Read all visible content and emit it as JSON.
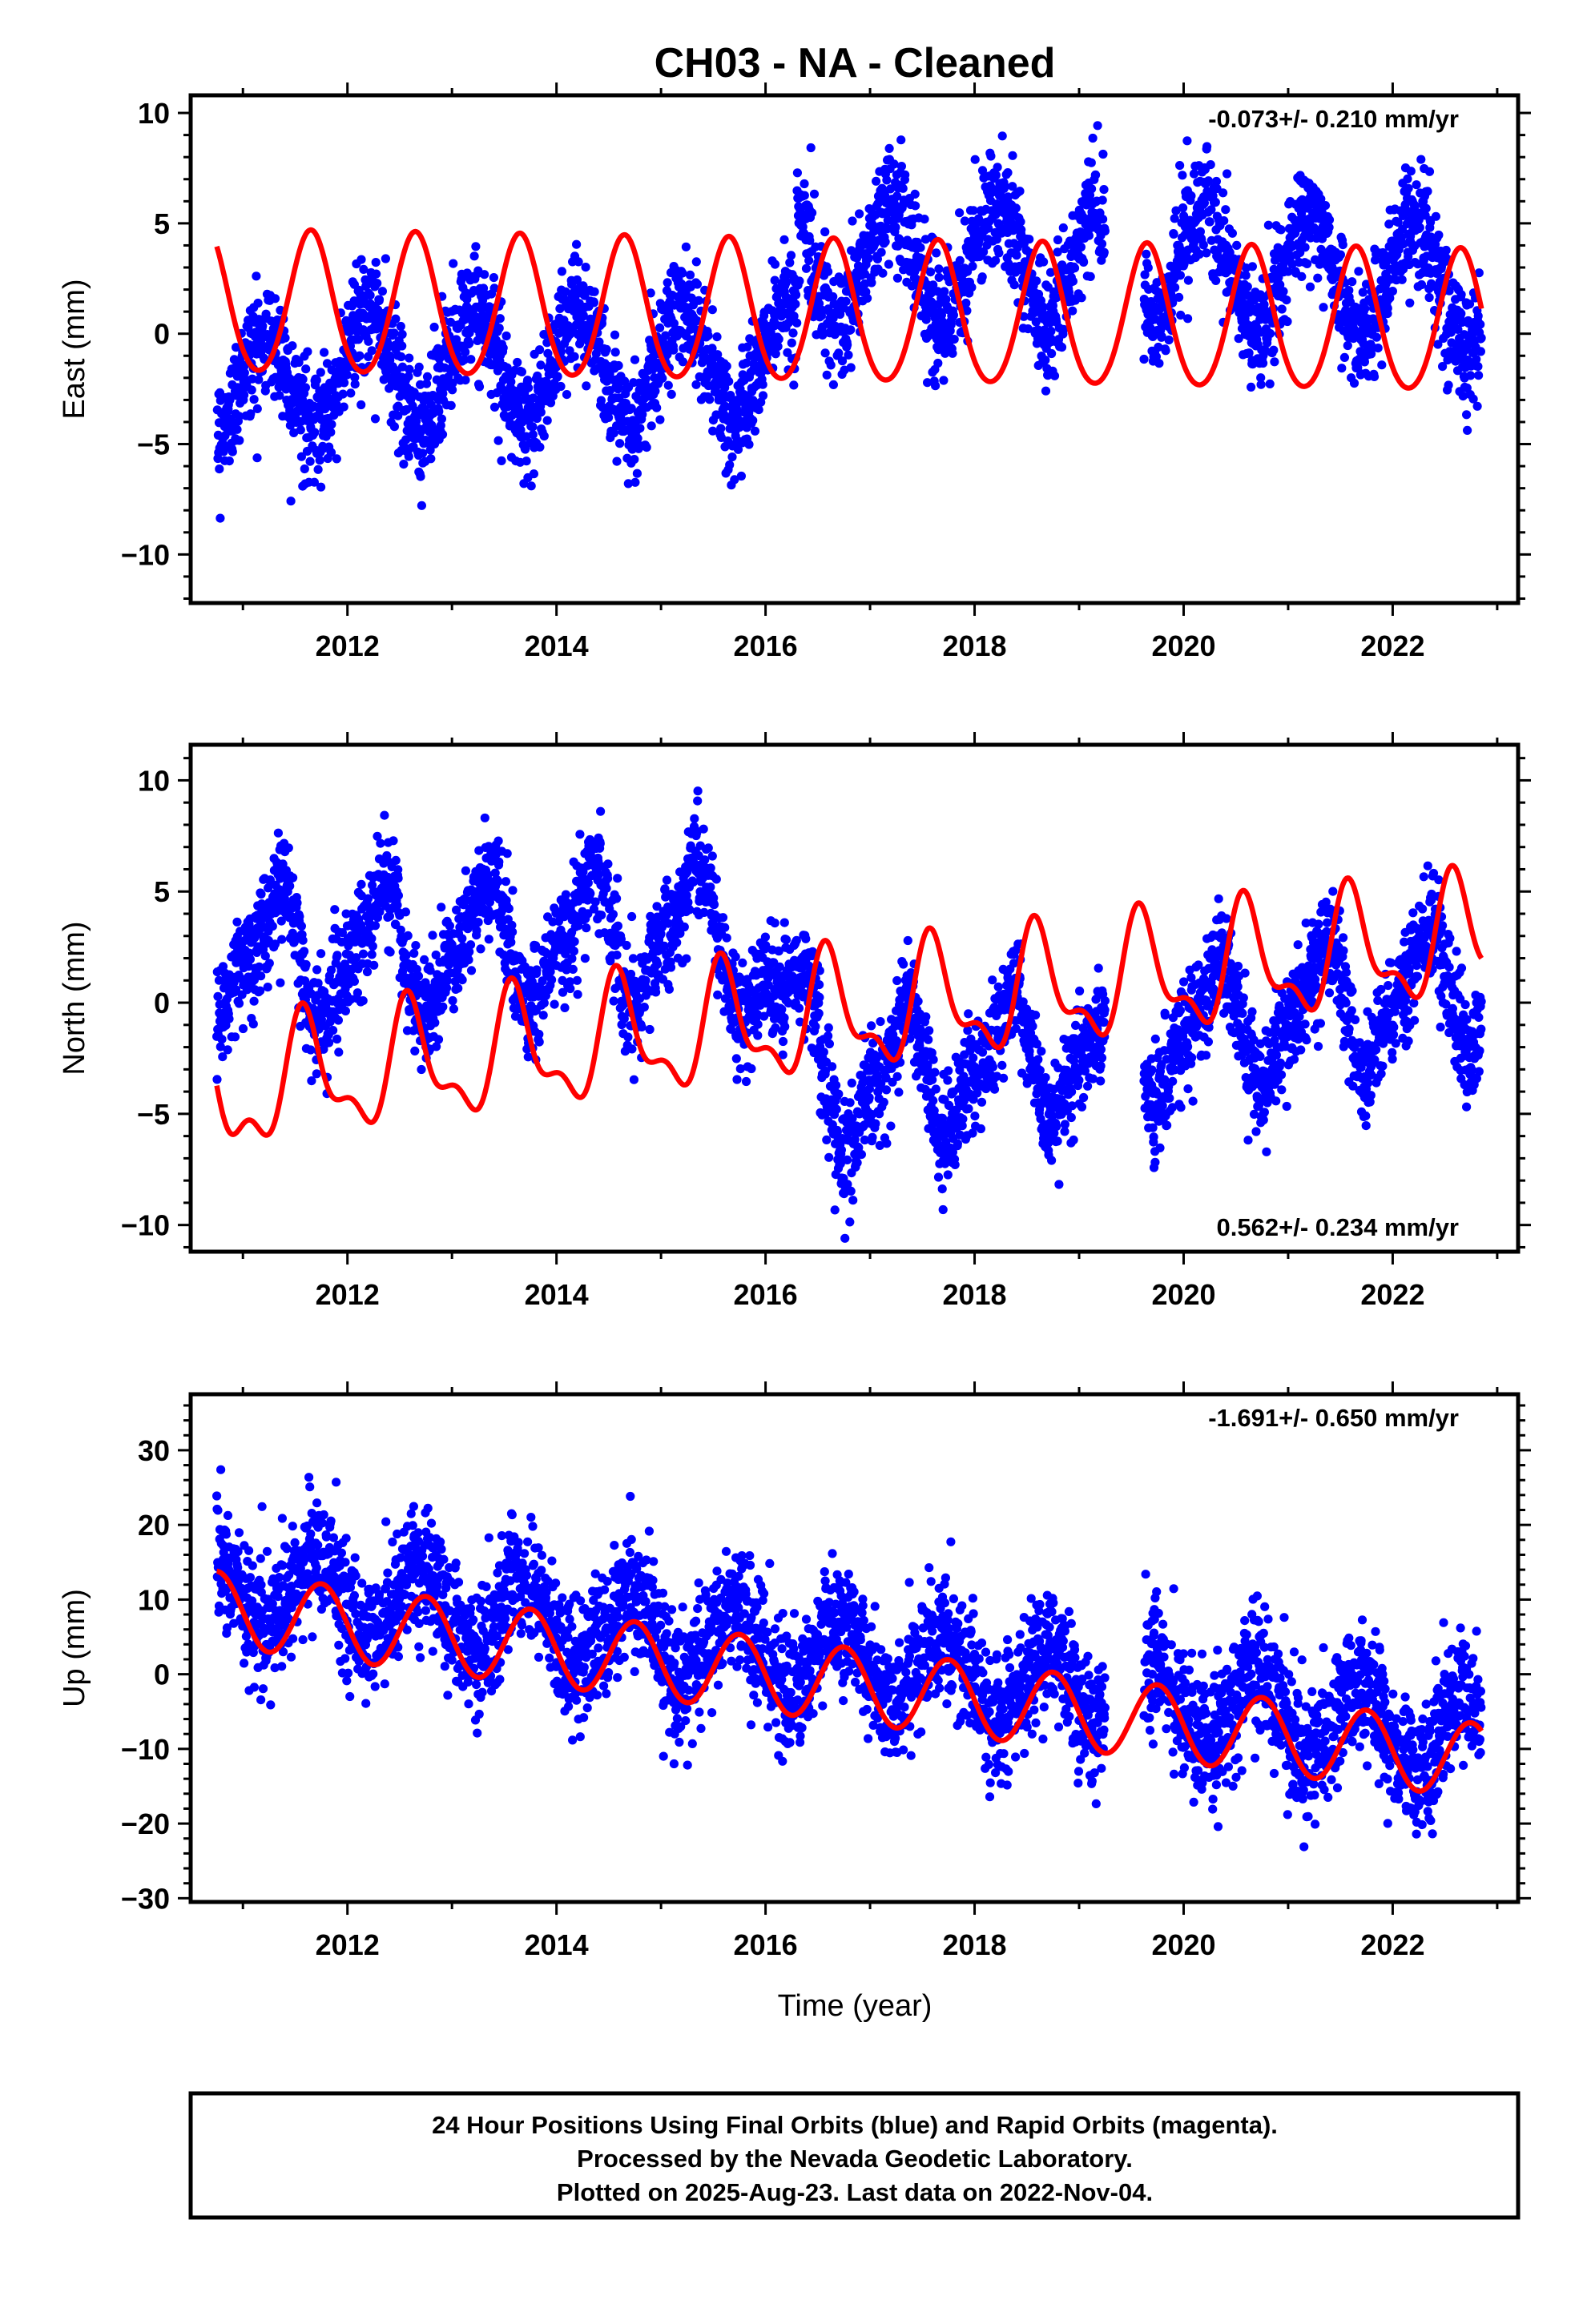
{
  "title": "CH03  - NA - Cleaned",
  "xlabel": "Time (year)",
  "footer": [
    "24 Hour Positions Using Final Orbits (blue) and Rapid Orbits (magenta).",
    "Processed by the Nevada Geodetic Laboratory.",
    "Plotted on 2025-Aug-23. Last data on 2022-Nov-04."
  ],
  "colors": {
    "data": "#0000ff",
    "model": "#ff0000"
  },
  "chart_data": [
    {
      "type": "scatter",
      "ylabel": "East (mm)",
      "rate": "-0.073+/- 0.210 mm/yr",
      "rate_position": "top-right",
      "xlim": [
        2010.5,
        2023.2
      ],
      "ylim": [
        -12.2,
        10.8
      ],
      "xticks": [
        2012,
        2014,
        2016,
        2018,
        2020,
        2022
      ],
      "yticks": [
        -10,
        -5,
        0,
        5,
        10
      ],
      "series": [
        {
          "role": "data",
          "x_range": [
            2010.75,
            2022.85
          ]
        },
        {
          "role": "model",
          "offset": 0.85,
          "trend_mm_per_yr": -0.073,
          "annual_amplitude": 3.2,
          "x_range": [
            2010.75,
            2022.85
          ]
        }
      ]
    },
    {
      "type": "scatter",
      "ylabel": "North (mm)",
      "rate": "0.562+/- 0.234 mm/yr",
      "rate_position": "bottom-right",
      "xlim": [
        2010.5,
        2023.2
      ],
      "ylim": [
        -11.2,
        11.6
      ],
      "xticks": [
        2012,
        2014,
        2016,
        2018,
        2020,
        2022
      ],
      "yticks": [
        -10,
        -5,
        0,
        5,
        10
      ],
      "series": [
        {
          "role": "data",
          "x_range": [
            2010.75,
            2022.85
          ]
        },
        {
          "role": "model",
          "trend_mm_per_yr": 0.562,
          "annual_amplitude": 2.6,
          "x_range": [
            2010.75,
            2022.85
          ]
        }
      ]
    },
    {
      "type": "scatter",
      "ylabel": "Up (mm)",
      "rate": "-1.691+/- 0.650 mm/yr",
      "rate_position": "top-right",
      "xlim": [
        2010.5,
        2023.2
      ],
      "ylim": [
        -30.5,
        37.5
      ],
      "xticks": [
        2012,
        2014,
        2016,
        2018,
        2020,
        2022
      ],
      "yticks": [
        -30,
        -20,
        -10,
        0,
        10,
        20,
        30
      ],
      "series": [
        {
          "role": "data",
          "x_range": [
            2010.75,
            2022.85
          ]
        },
        {
          "role": "model",
          "trend_mm_per_yr": -1.691,
          "annual_amplitude": 5.0,
          "x_range": [
            2010.75,
            2022.85
          ]
        }
      ]
    }
  ]
}
